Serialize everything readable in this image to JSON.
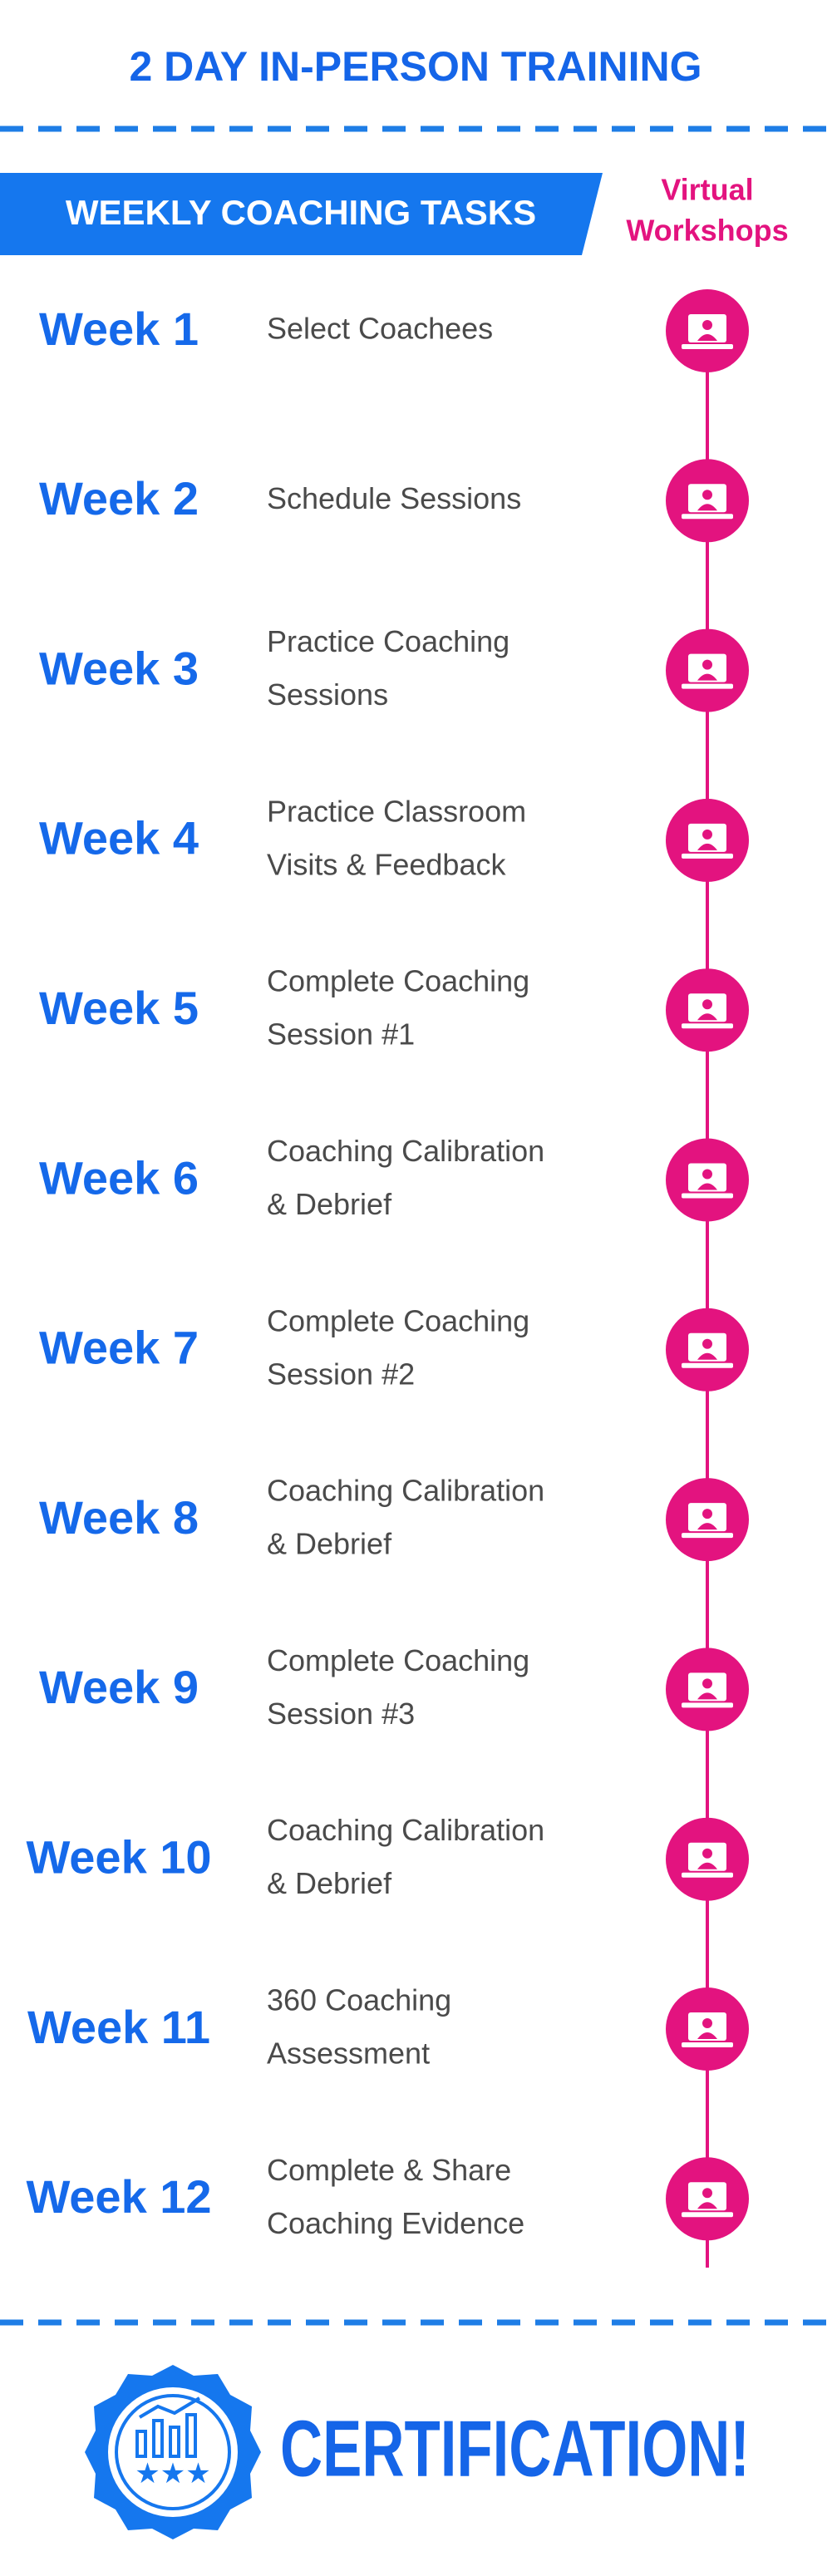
{
  "header": {
    "title": "2 DAY IN-PERSON TRAINING"
  },
  "banner": {
    "title": "WEEKLY COACHING TASKS",
    "side_label": [
      "Virtual",
      "Workshops"
    ]
  },
  "weeks": [
    {
      "label": "Week 1",
      "task": [
        "Select  Coachees"
      ]
    },
    {
      "label": "Week 2",
      "task": [
        "Schedule Sessions"
      ]
    },
    {
      "label": "Week 3",
      "task": [
        "Practice Coaching",
        "Sessions"
      ]
    },
    {
      "label": "Week 4",
      "task": [
        "Practice Classroom",
        "Visits & Feedback"
      ]
    },
    {
      "label": "Week 5",
      "task": [
        "Complete Coaching",
        "Session #1"
      ]
    },
    {
      "label": "Week 6",
      "task": [
        "Coaching Calibration",
        "& Debrief"
      ]
    },
    {
      "label": "Week 7",
      "task": [
        "Complete Coaching",
        "Session #2"
      ]
    },
    {
      "label": "Week 8",
      "task": [
        "Coaching Calibration",
        "& Debrief"
      ]
    },
    {
      "label": "Week 9",
      "task": [
        "Complete Coaching",
        "Session #3"
      ]
    },
    {
      "label": "Week 10",
      "task": [
        "Coaching Calibration",
        "& Debrief"
      ]
    },
    {
      "label": "Week 11",
      "task": [
        "360 Coaching",
        "Assessment"
      ]
    },
    {
      "label": "Week 12",
      "task": [
        "Complete & Share",
        "Coaching Evidence"
      ]
    }
  ],
  "footer": {
    "title": "CERTIFICATION!"
  }
}
